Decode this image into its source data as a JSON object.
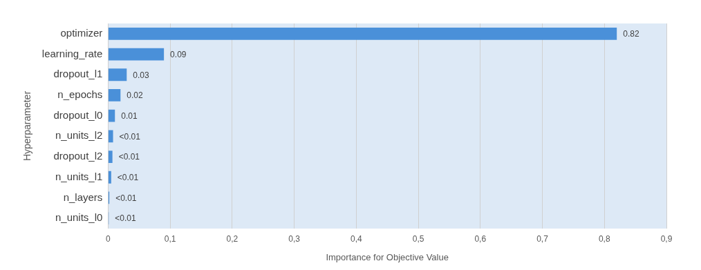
{
  "chart_data": {
    "type": "bar",
    "orientation": "horizontal",
    "xlabel": "Importance for Objective Value",
    "ylabel": "Hyperparameter",
    "categories": [
      "optimizer",
      "learning_rate",
      "dropout_l1",
      "n_epochs",
      "dropout_l0",
      "n_units_l2",
      "dropout_l2",
      "n_units_l1",
      "n_layers",
      "n_units_l0"
    ],
    "values": [
      0.82,
      0.09,
      0.03,
      0.02,
      0.011,
      0.008,
      0.007,
      0.005,
      0.002,
      0.001
    ],
    "value_labels": [
      "0.82",
      "0.09",
      "0.03",
      "0.02",
      "0.01",
      "<0.01",
      "<0.01",
      "<0.01",
      "<0.01",
      "<0.01"
    ],
    "color": "#4a90d9",
    "xlim": [
      0,
      0.9
    ],
    "xticks": [
      {
        "value": 0,
        "label": "0"
      },
      {
        "value": 0.1,
        "label": "0,1"
      },
      {
        "value": 0.2,
        "label": "0,2"
      },
      {
        "value": 0.3,
        "label": "0,3"
      },
      {
        "value": 0.4,
        "label": "0,4"
      },
      {
        "value": 0.5,
        "label": "0,5"
      },
      {
        "value": 0.6,
        "label": "0,6"
      },
      {
        "value": 0.7,
        "label": "0,7"
      },
      {
        "value": 0.8,
        "label": "0,8"
      },
      {
        "value": 0.9,
        "label": "0,9"
      }
    ],
    "grid": "x",
    "legend": false
  }
}
